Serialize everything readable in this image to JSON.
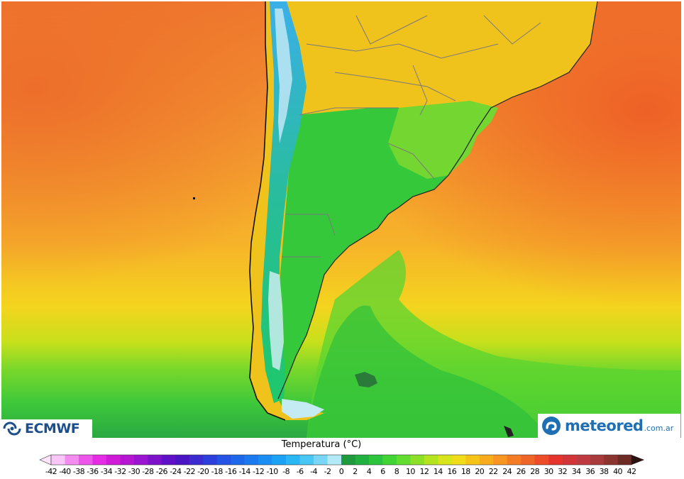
{
  "map": {
    "region": "South America (southern cone)",
    "field": "temperature",
    "source_logo": "ECMWF",
    "provider_logo": "meteored",
    "provider_domain": ".com.ar"
  },
  "legend": {
    "title": "Temperatura (°C)",
    "ticks": [
      "-42",
      "-40",
      "-38",
      "-36",
      "-34",
      "-32",
      "-30",
      "-28",
      "-26",
      "-24",
      "-22",
      "-20",
      "-18",
      "-16",
      "-14",
      "-12",
      "-10",
      "-8",
      "-6",
      "-4",
      "-2",
      "0",
      "2",
      "4",
      "6",
      "8",
      "10",
      "12",
      "14",
      "16",
      "18",
      "20",
      "22",
      "24",
      "26",
      "28",
      "30",
      "32",
      "34",
      "36",
      "38",
      "40",
      "42"
    ],
    "colors": [
      "#f9c6f7",
      "#f48cf0",
      "#ee55ea",
      "#e62be4",
      "#d01ad8",
      "#b616d4",
      "#9c14d0",
      "#7d12cc",
      "#6010c8",
      "#4a14c4",
      "#3a2ad0",
      "#2c3edc",
      "#2452e4",
      "#1e66ea",
      "#1c7af0",
      "#1a8ef2",
      "#1ca2f4",
      "#28b6f4",
      "#48c6f4",
      "#78d6f6",
      "#b4eaf8",
      "#1f9a3c",
      "#22b03e",
      "#2cc43c",
      "#40d436",
      "#62dc2e",
      "#8ce028",
      "#b4e420",
      "#d8e41c",
      "#f0dc18",
      "#f6c418",
      "#f8ac1c",
      "#f89420",
      "#f47c24",
      "#f06428",
      "#ec4c28",
      "#e4342c",
      "#d23438",
      "#c03840",
      "#a83a3e",
      "#8c3430",
      "#6e2a24",
      "#4c1e18"
    ],
    "over_color": "#2a1410",
    "under_color": "#fde4fb"
  },
  "colors": {
    "ocean_warm": "#f07a30",
    "ocean_mid": "#f6a830",
    "ocean_cool": "#f2d820",
    "ocean_cold": "#4cd438",
    "land_andes": "#1ba8e8",
    "ecmwf_blue": "#1d4f8c",
    "meteored_blue": "#1f6fb4"
  }
}
